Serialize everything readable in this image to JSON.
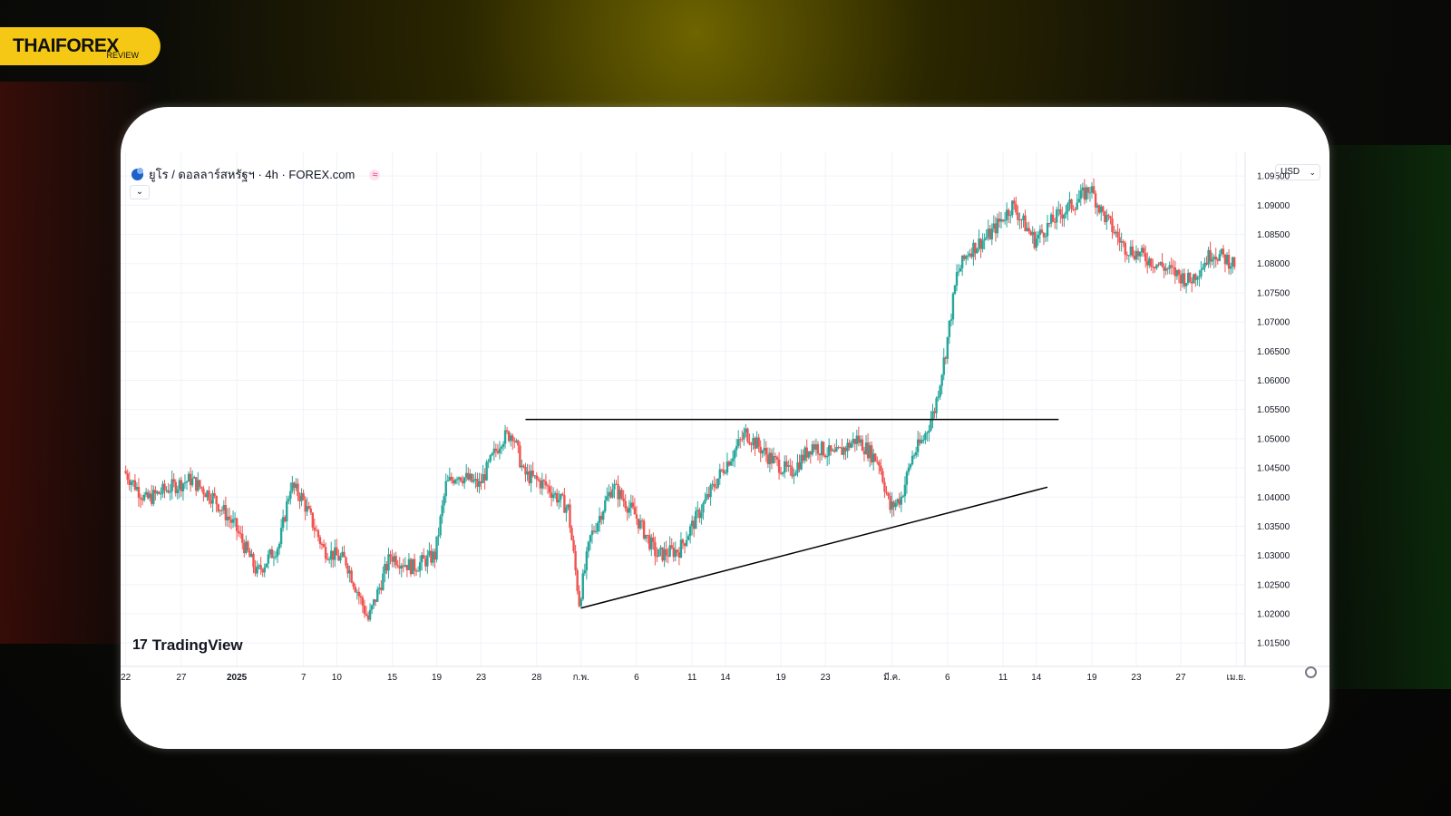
{
  "brand": {
    "name": "THAIFOREX",
    "sub": "REVIEW"
  },
  "header": {
    "title": "ยูโร / ดอลลาร์สหรัฐฯ · 4h · FOREX.com",
    "indicator": "≈",
    "currency": "USD",
    "collapse_glyph": "⌄"
  },
  "watermark": {
    "mark": "17",
    "text": "TradingView"
  },
  "colors": {
    "up": "#26a69a",
    "down": "#ef5350",
    "grid": "#f0f3fa",
    "trendline": "#000000"
  },
  "chart_data": {
    "type": "candlestick",
    "symbol": "EUR/USD",
    "timeframe": "4h",
    "y_ticks": [
      "1.01500",
      "1.02000",
      "1.02500",
      "1.03000",
      "1.03500",
      "1.04000",
      "1.04500",
      "1.05000",
      "1.05500",
      "1.06000",
      "1.06500",
      "1.07000",
      "1.07500",
      "1.08000",
      "1.08500",
      "1.09000",
      "1.09500"
    ],
    "ylim": [
      1.011,
      1.0975
    ],
    "x_ticks": [
      {
        "label": "22",
        "day": -10
      },
      {
        "label": "27",
        "day": -5
      },
      {
        "label": "2025",
        "day": 0,
        "bold": true
      },
      {
        "label": "7",
        "day": 6
      },
      {
        "label": "10",
        "day": 9
      },
      {
        "label": "15",
        "day": 14
      },
      {
        "label": "19",
        "day": 18
      },
      {
        "label": "23",
        "day": 22
      },
      {
        "label": "28",
        "day": 27
      },
      {
        "label": "ก.พ.",
        "day": 31
      },
      {
        "label": "6",
        "day": 36
      },
      {
        "label": "11",
        "day": 41
      },
      {
        "label": "14",
        "day": 44
      },
      {
        "label": "19",
        "day": 49
      },
      {
        "label": "23",
        "day": 53
      },
      {
        "label": "มี.ค.",
        "day": 59
      },
      {
        "label": "6",
        "day": 64
      },
      {
        "label": "11",
        "day": 69
      },
      {
        "label": "14",
        "day": 72
      },
      {
        "label": "19",
        "day": 77
      },
      {
        "label": "23",
        "day": 81
      },
      {
        "label": "27",
        "day": 85
      },
      {
        "label": "เม.ย.",
        "day": 90
      }
    ],
    "price_path": [
      [
        -10,
        1.0445
      ],
      [
        -8,
        1.0395
      ],
      [
        -6,
        1.0415
      ],
      [
        -4,
        1.043
      ],
      [
        -2,
        1.04
      ],
      [
        0,
        1.035
      ],
      [
        2,
        1.027
      ],
      [
        4,
        1.032
      ],
      [
        5,
        1.042
      ],
      [
        6,
        1.04
      ],
      [
        8,
        1.031
      ],
      [
        10,
        1.029
      ],
      [
        12,
        1.019
      ],
      [
        14,
        1.03
      ],
      [
        16,
        1.028
      ],
      [
        18,
        1.03
      ],
      [
        19,
        1.042
      ],
      [
        20,
        1.044
      ],
      [
        22,
        1.042
      ],
      [
        24,
        1.05
      ],
      [
        25,
        1.051
      ],
      [
        26,
        1.044
      ],
      [
        28,
        1.042
      ],
      [
        30,
        1.038
      ],
      [
        31,
        1.022
      ],
      [
        32,
        1.033
      ],
      [
        34,
        1.042
      ],
      [
        36,
        1.037
      ],
      [
        38,
        1.03
      ],
      [
        40,
        1.031
      ],
      [
        42,
        1.038
      ],
      [
        44,
        1.045
      ],
      [
        46,
        1.051
      ],
      [
        48,
        1.047
      ],
      [
        50,
        1.044
      ],
      [
        52,
        1.049
      ],
      [
        54,
        1.047
      ],
      [
        56,
        1.05
      ],
      [
        58,
        1.046
      ],
      [
        59,
        1.038
      ],
      [
        60,
        1.04
      ],
      [
        61,
        1.047
      ],
      [
        62,
        1.05
      ],
      [
        63,
        1.055
      ],
      [
        64,
        1.065
      ],
      [
        65,
        1.078
      ],
      [
        66,
        1.082
      ],
      [
        68,
        1.085
      ],
      [
        70,
        1.09
      ],
      [
        72,
        1.084
      ],
      [
        74,
        1.088
      ],
      [
        76,
        1.091
      ],
      [
        77,
        1.093
      ],
      [
        78,
        1.089
      ],
      [
        80,
        1.083
      ],
      [
        82,
        1.081
      ],
      [
        84,
        1.079
      ],
      [
        86,
        1.077
      ],
      [
        88,
        1.082
      ],
      [
        90,
        1.08
      ]
    ],
    "annotations": [
      {
        "type": "horizontal-resistance",
        "from": [
          26,
          1.0533
        ],
        "to": [
          74,
          1.0533
        ]
      },
      {
        "type": "ascending-support",
        "from": [
          31,
          1.021
        ],
        "to": [
          73,
          1.0417
        ]
      }
    ],
    "legend": "none",
    "grid": true
  }
}
